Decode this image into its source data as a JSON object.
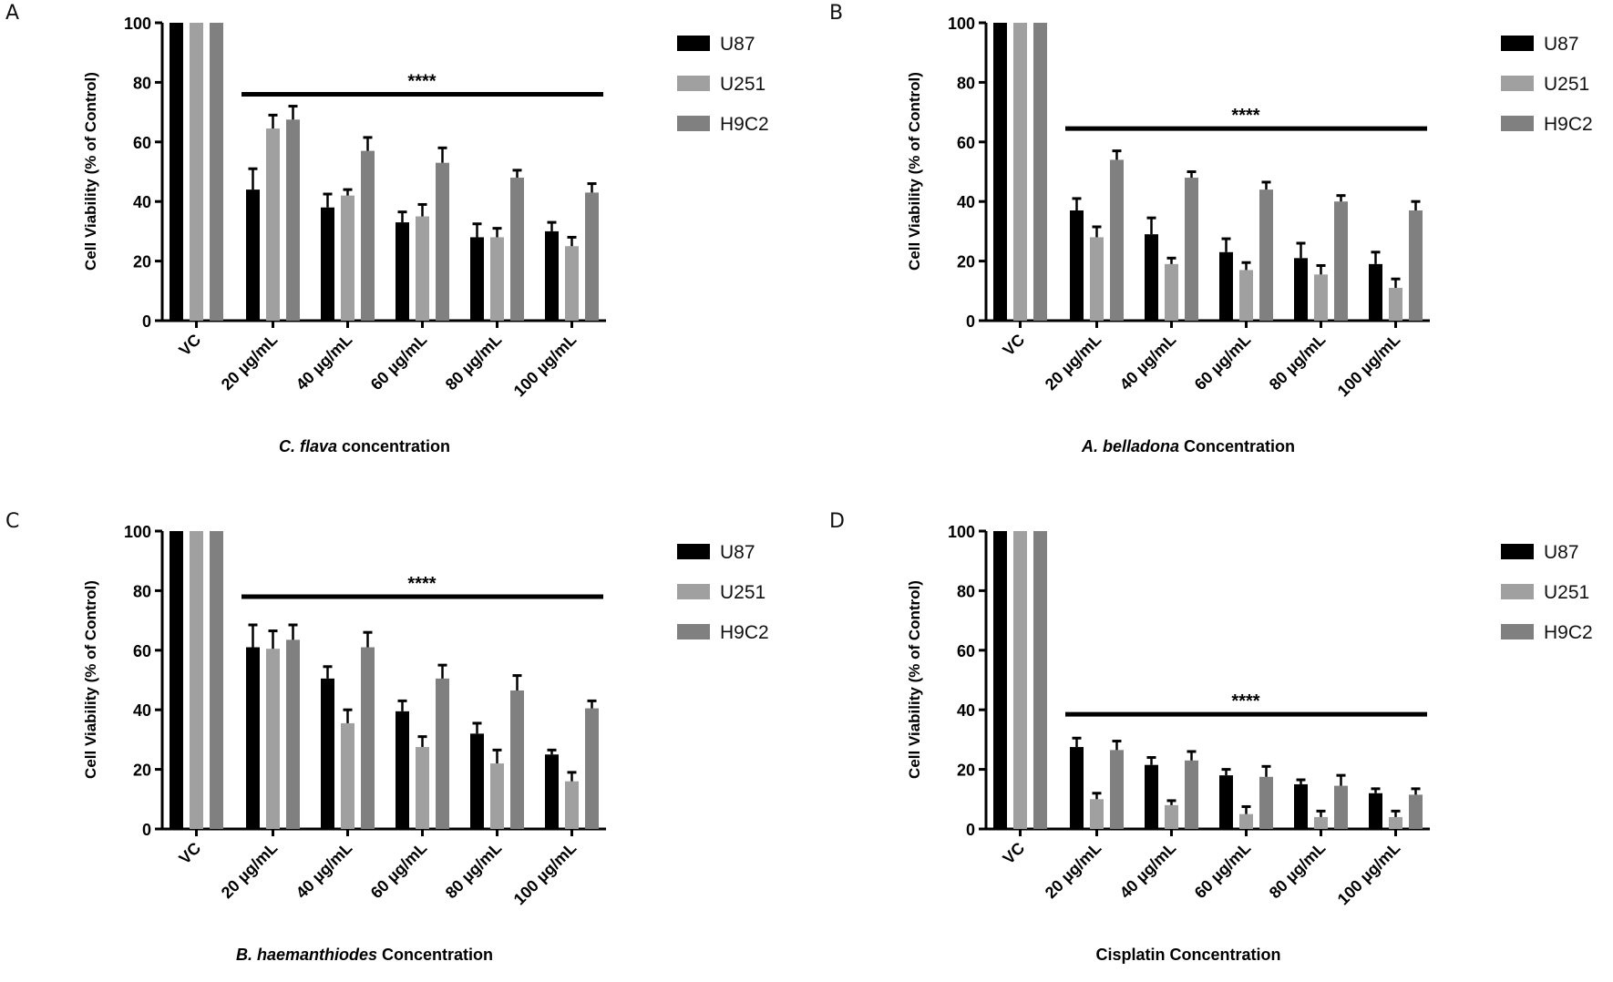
{
  "chart_data": [
    {
      "type": "bar",
      "panel": "A",
      "title": "",
      "xlabel_italic": "C. flava",
      "xlabel_rest": " concentration",
      "ylabel": "Cell Viability (% of Control)",
      "ylim": [
        0,
        100
      ],
      "yticks": [
        "0",
        "20",
        "40",
        "60",
        "80",
        "100"
      ],
      "categories": [
        "VC",
        "20 µg/mL",
        "40 µg/mL",
        "60 µg/mL",
        "80 µg/mL",
        "100 µg/mL"
      ],
      "series": [
        {
          "name": "U87",
          "color": "#000000",
          "values": [
            100,
            44,
            38,
            33,
            28,
            30
          ],
          "errors": [
            0,
            7,
            4.5,
            3.5,
            4.5,
            3
          ]
        },
        {
          "name": "U251",
          "color": "#a0a0a0",
          "values": [
            100,
            64.5,
            42,
            35,
            28,
            25
          ],
          "errors": [
            0,
            4.5,
            2,
            4,
            3,
            3
          ]
        },
        {
          "name": "H9C2",
          "color": "#808080",
          "values": [
            100,
            67.5,
            57,
            53,
            48,
            43
          ],
          "errors": [
            0,
            4.5,
            4.5,
            5,
            2.5,
            3
          ]
        }
      ],
      "significance": {
        "label": "****",
        "level": 76
      },
      "legend": "right",
      "grid": false
    },
    {
      "type": "bar",
      "panel": "B",
      "title": "",
      "xlabel_italic": "A. belladona",
      "xlabel_rest": " Concentration",
      "ylabel": "Cell Viability (% of Control)",
      "ylim": [
        0,
        100
      ],
      "yticks": [
        "0",
        "20",
        "40",
        "60",
        "80",
        "100"
      ],
      "categories": [
        "VC",
        "20 µg/mL",
        "40 µg/mL",
        "60 µg/mL",
        "80 µg/mL",
        "100 µg/mL"
      ],
      "series": [
        {
          "name": "U87",
          "color": "#000000",
          "values": [
            100,
            37,
            29,
            23,
            21,
            19
          ],
          "errors": [
            0,
            4,
            5.5,
            4.5,
            5,
            4
          ]
        },
        {
          "name": "U251",
          "color": "#a0a0a0",
          "values": [
            100,
            28,
            19,
            17,
            15.5,
            11
          ],
          "errors": [
            0,
            3.5,
            2,
            2.5,
            3,
            3
          ]
        },
        {
          "name": "H9C2",
          "color": "#808080",
          "values": [
            100,
            54,
            48,
            44,
            40,
            37
          ],
          "errors": [
            0,
            3,
            2,
            2.5,
            2,
            3
          ]
        }
      ],
      "significance": {
        "label": "****",
        "level": 64.5
      },
      "legend": "right",
      "grid": false
    },
    {
      "type": "bar",
      "panel": "C",
      "title": "",
      "xlabel_italic": "B. haemanthiodes",
      "xlabel_rest": " Concentration",
      "ylabel": "Cell Viability (% of Control)",
      "ylim": [
        0,
        100
      ],
      "yticks": [
        "0",
        "20",
        "40",
        "60",
        "80",
        "100"
      ],
      "categories": [
        "VC",
        "20 µg/mL",
        "40 µg/mL",
        "60 µg/mL",
        "80 µg/mL",
        "100 µg/mL"
      ],
      "series": [
        {
          "name": "U87",
          "color": "#000000",
          "values": [
            100,
            61,
            50.5,
            39.5,
            32,
            25
          ],
          "errors": [
            0,
            7.5,
            4,
            3.5,
            3.5,
            1.5
          ]
        },
        {
          "name": "U251",
          "color": "#a0a0a0",
          "values": [
            100,
            60.5,
            35.5,
            27.5,
            22,
            16
          ],
          "errors": [
            0,
            6,
            4.5,
            3.5,
            4.5,
            3
          ]
        },
        {
          "name": "H9C2",
          "color": "#808080",
          "values": [
            100,
            63.5,
            61,
            50.5,
            46.5,
            40.5
          ],
          "errors": [
            0,
            5,
            5,
            4.5,
            5,
            2.5
          ]
        }
      ],
      "significance": {
        "label": "****",
        "level": 78
      },
      "legend": "right",
      "grid": false
    },
    {
      "type": "bar",
      "panel": "D",
      "title": "",
      "xlabel_italic": "",
      "xlabel_rest": "Cisplatin Concentration",
      "ylabel": "Cell Viability (% of Control)",
      "ylim": [
        0,
        100
      ],
      "yticks": [
        "0",
        "20",
        "40",
        "60",
        "80",
        "100"
      ],
      "categories": [
        "VC",
        "20 µg/mL",
        "40 µg/mL",
        "60 µg/mL",
        "80 µg/mL",
        "100 µg/mL"
      ],
      "series": [
        {
          "name": "U87",
          "color": "#000000",
          "values": [
            100,
            27.5,
            21.5,
            18,
            15,
            12
          ],
          "errors": [
            0,
            3,
            2.5,
            2,
            1.5,
            1.5
          ]
        },
        {
          "name": "U251",
          "color": "#a0a0a0",
          "values": [
            100,
            10,
            8,
            5,
            4,
            4
          ],
          "errors": [
            0,
            2,
            1.5,
            2.5,
            2,
            2
          ]
        },
        {
          "name": "H9C2",
          "color": "#808080",
          "values": [
            100,
            26.5,
            23,
            17.5,
            14.5,
            11.5
          ],
          "errors": [
            0,
            3,
            3,
            3.5,
            3.5,
            2
          ]
        }
      ],
      "significance": {
        "label": "****",
        "level": 38.5
      },
      "legend": "right",
      "grid": false
    }
  ]
}
